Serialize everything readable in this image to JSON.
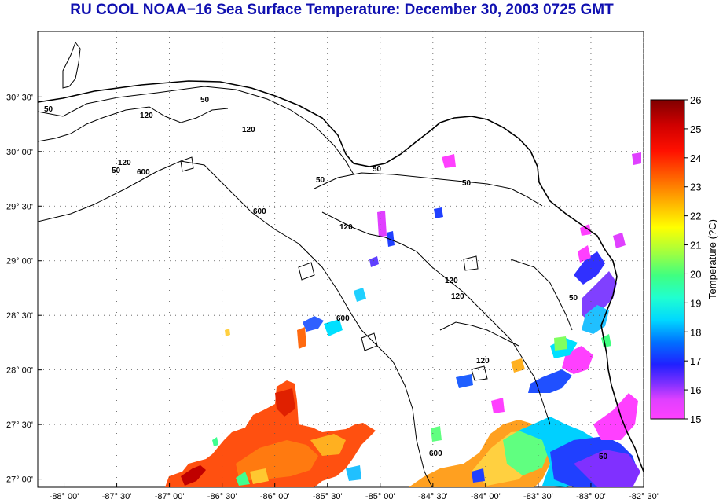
{
  "title": "RU COOL  NOAA−16  Sea Surface Temperature:  December 30, 2003 0725 GMT",
  "map": {
    "lon_range": [
      -88.25,
      -82.5
    ],
    "lat_range": [
      26.925,
      31.1
    ],
    "x_ticks": [
      {
        "label": "-88° 00'"
      },
      {
        "label": "-87° 30'"
      },
      {
        "label": "-87° 00'"
      },
      {
        "label": "-86° 30'"
      },
      {
        "label": "-86° 00'"
      },
      {
        "label": "-85° 30'"
      },
      {
        "label": "-85° 00'"
      },
      {
        "label": "-84° 30'"
      },
      {
        "label": "-84° 00'"
      },
      {
        "label": "-83° 30'"
      },
      {
        "label": "-83° 00'"
      },
      {
        "label": "-82° 30'"
      }
    ],
    "y_ticks": [
      {
        "label": "30° 30'"
      },
      {
        "label": "30° 00'"
      },
      {
        "label": "29° 30'"
      },
      {
        "label": "29° 00'"
      },
      {
        "label": "28° 30'"
      },
      {
        "label": "28° 00'"
      },
      {
        "label": "27° 30'"
      },
      {
        "label": "27° 00'"
      }
    ],
    "contour_labels": [
      "50",
      "50",
      "120",
      "120",
      "50",
      "600",
      "120",
      "50",
      "50",
      "50",
      "600",
      "120",
      "120",
      "120",
      "600",
      "120",
      "50",
      "600",
      "50"
    ]
  },
  "colorbar": {
    "title": "Temperature (?C)",
    "min": 15,
    "max": 26,
    "labels": [
      "26",
      "25",
      "24",
      "23",
      "22",
      "21",
      "20",
      "19",
      "18",
      "17",
      "16",
      "15"
    ]
  }
}
